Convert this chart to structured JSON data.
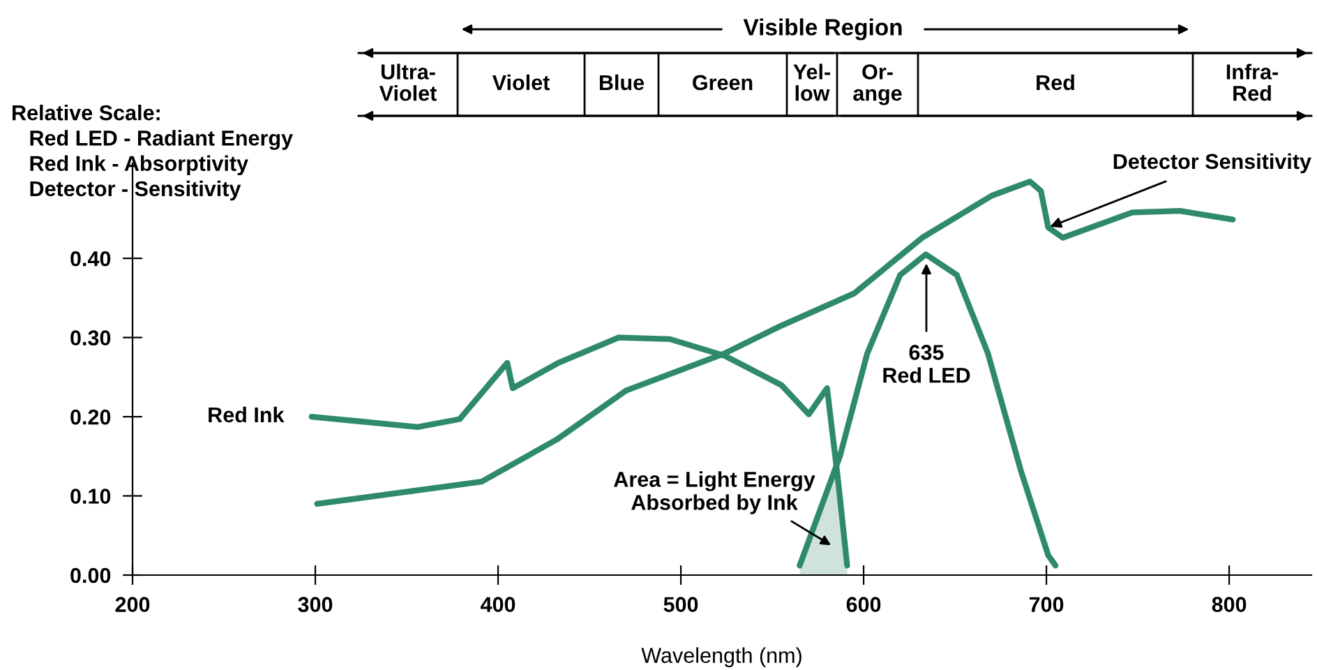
{
  "chart_data": {
    "type": "line",
    "xlabel": "Wavelength (nm)",
    "xlim": [
      200,
      845
    ],
    "ylim": [
      0,
      0.52
    ],
    "xticks": [
      200,
      300,
      400,
      500,
      600,
      700,
      800
    ],
    "yticks": [
      {
        "value": 0,
        "label": "0.00"
      },
      {
        "value": 0.1,
        "label": "0.10"
      },
      {
        "value": 0.2,
        "label": "0.20"
      },
      {
        "value": 0.3,
        "label": "0.30"
      },
      {
        "value": 0.4,
        "label": "0.40"
      }
    ],
    "grid": false,
    "legend": false,
    "marker": "none",
    "line_style": "solid",
    "series": [
      {
        "name": "Red Ink",
        "color": "#2f8a6c",
        "x": [
          298,
          356,
          379,
          405,
          408,
          433,
          466,
          494,
          524,
          555,
          570,
          580,
          586,
          591
        ],
        "values": [
          0.2,
          0.187,
          0.197,
          0.268,
          0.236,
          0.268,
          0.3,
          0.298,
          0.277,
          0.24,
          0.203,
          0.236,
          0.12,
          0.012
        ]
      },
      {
        "color": "#2f8a6c",
        "x": [
          301,
          391,
          432,
          470,
          524,
          555,
          595,
          632,
          670,
          691,
          697,
          701,
          709,
          747,
          773,
          802
        ],
        "values": [
          0.09,
          0.118,
          0.171,
          0.233,
          0.28,
          0.315,
          0.356,
          0.426,
          0.479,
          0.497,
          0.485,
          0.439,
          0.426,
          0.458,
          0.46,
          0.449
        ]
      },
      {
        "color": "#2f8a6c",
        "x": [
          565,
          587,
          602,
          620,
          634,
          651,
          668,
          686,
          701,
          705
        ],
        "values": [
          0.012,
          0.15,
          0.28,
          0.379,
          0.405,
          0.379,
          0.28,
          0.132,
          0.025,
          0.012
        ]
      },
      {
        "type": "area",
        "color": "#cfe3da",
        "x": [
          565,
          576,
          585,
          586,
          591
        ],
        "values": [
          0.012,
          0.08,
          0.14,
          0.12,
          0.012
        ]
      }
    ],
    "annotations": [
      "Visible Region",
      "Ultra-\nViolet",
      "Violet",
      "Blue",
      "Green",
      "Yel-\nlow",
      "Or-\nange",
      "Red",
      "Infra-\nRed",
      "Relative Scale:\n   Red LED - Radiant Energy\n   Red Ink - Absorptivity\n   Detector - Sensitivity",
      {
        "text": "Detector Sensitivity",
        "x": 702,
        "y": 0.44
      },
      "635\nRed LED",
      "Area = Light Energy\nAbsorbed by Ink"
    ]
  }
}
